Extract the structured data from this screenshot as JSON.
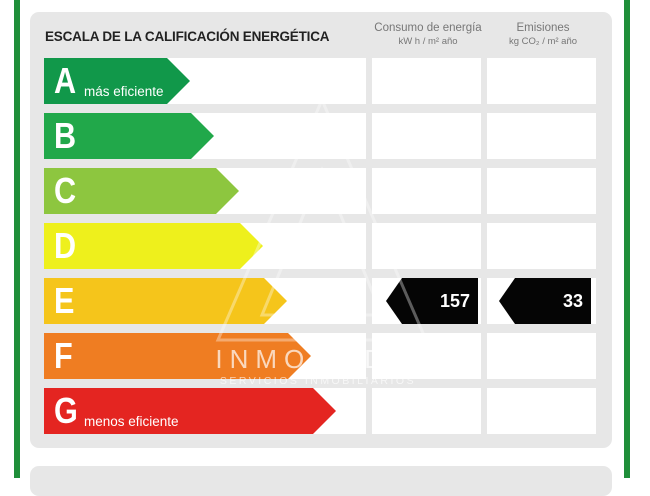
{
  "label": {
    "title": "ESCALA DE LA CALIFICACIÓN ENERGÉTICA",
    "columns": {
      "consumption": {
        "title": "Consumo de energía",
        "unit": "kW h / m² año"
      },
      "emissions": {
        "title": "Emisiones",
        "unit": "kg CO₂ / m² año"
      }
    },
    "ratings": [
      {
        "letter": "A",
        "note": "más eficiente",
        "color": "#11984a"
      },
      {
        "letter": "B",
        "note": "",
        "color": "#21a84a"
      },
      {
        "letter": "C",
        "note": "",
        "color": "#8dc63f"
      },
      {
        "letter": "D",
        "note": "",
        "color": "#eef01c"
      },
      {
        "letter": "E",
        "note": "",
        "color": "#f5c51b"
      },
      {
        "letter": "F",
        "note": "",
        "color": "#ef7d22"
      },
      {
        "letter": "G",
        "note": "menos eficiente",
        "color": "#e42521"
      }
    ],
    "current": {
      "rating": "E",
      "consumption_value": "157",
      "emissions_value": "33"
    }
  },
  "watermark": {
    "name": "INMOMEDIA",
    "tagline": "SERVICIOS INMOBILIARIOS"
  }
}
